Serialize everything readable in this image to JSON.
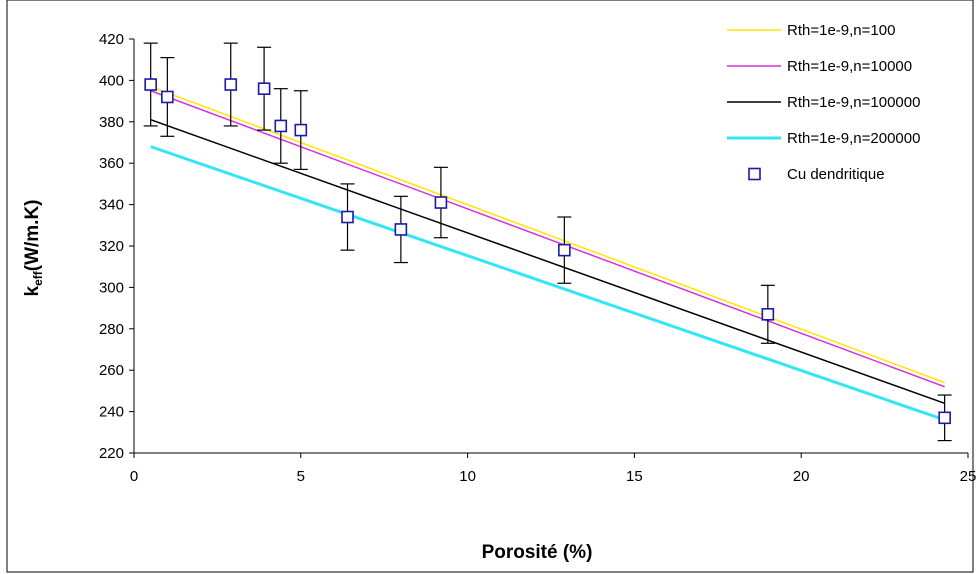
{
  "chart_data": {
    "type": "line",
    "title": "",
    "xlabel": "Porosité (%)",
    "ylabel": "keff(W/m.K)",
    "ylabel_parts": {
      "k": "k",
      "sub": "eff",
      "rest": "(W/m.K)"
    },
    "xlim": [
      0,
      25
    ],
    "ylim": [
      220,
      420
    ],
    "xticks": [
      0,
      5,
      10,
      15,
      20,
      25
    ],
    "xtick_labels": [
      "0",
      "5",
      "10",
      "15",
      "20",
      "25"
    ],
    "yticks": [
      220,
      240,
      260,
      280,
      300,
      320,
      340,
      360,
      380,
      400,
      420
    ],
    "ytick_labels": [
      "220",
      "240",
      "260",
      "280",
      "300",
      "320",
      "340",
      "360",
      "380",
      "400",
      "420"
    ],
    "grid": false,
    "legend_position": "top-right",
    "series": [
      {
        "name": "Rth=1e-9,n=100",
        "color": "#ffe600",
        "x": [
          0.5,
          24.3
        ],
        "y": [
          397,
          254
        ]
      },
      {
        "name": "Rth=1e-9,n=10000",
        "color": "#d633d6",
        "x": [
          0.5,
          24.3
        ],
        "y": [
          395,
          252
        ]
      },
      {
        "name": "Rth=1e-9,n=100000",
        "color": "#000000",
        "x": [
          0.5,
          24.3
        ],
        "y": [
          381,
          244
        ]
      },
      {
        "name": "Rth=1e-9,n=200000",
        "color": "#33e5f5",
        "x": [
          0.5,
          24.3
        ],
        "y": [
          368,
          236
        ]
      }
    ],
    "scatter": {
      "name": "Cu dendritique",
      "color": "#1a1aa8",
      "points": [
        {
          "x": 0.5,
          "y": 398,
          "err": 20
        },
        {
          "x": 1.0,
          "y": 392,
          "err": 19
        },
        {
          "x": 2.9,
          "y": 398,
          "err": 20
        },
        {
          "x": 3.9,
          "y": 396,
          "err": 20
        },
        {
          "x": 4.4,
          "y": 378,
          "err": 18
        },
        {
          "x": 5.0,
          "y": 376,
          "err": 19
        },
        {
          "x": 6.4,
          "y": 334,
          "err": 16
        },
        {
          "x": 8.0,
          "y": 328,
          "err": 16
        },
        {
          "x": 9.2,
          "y": 341,
          "err": 17
        },
        {
          "x": 12.9,
          "y": 318,
          "err": 16
        },
        {
          "x": 19.0,
          "y": 287,
          "err": 14
        },
        {
          "x": 24.3,
          "y": 237,
          "err": 11
        }
      ]
    }
  }
}
